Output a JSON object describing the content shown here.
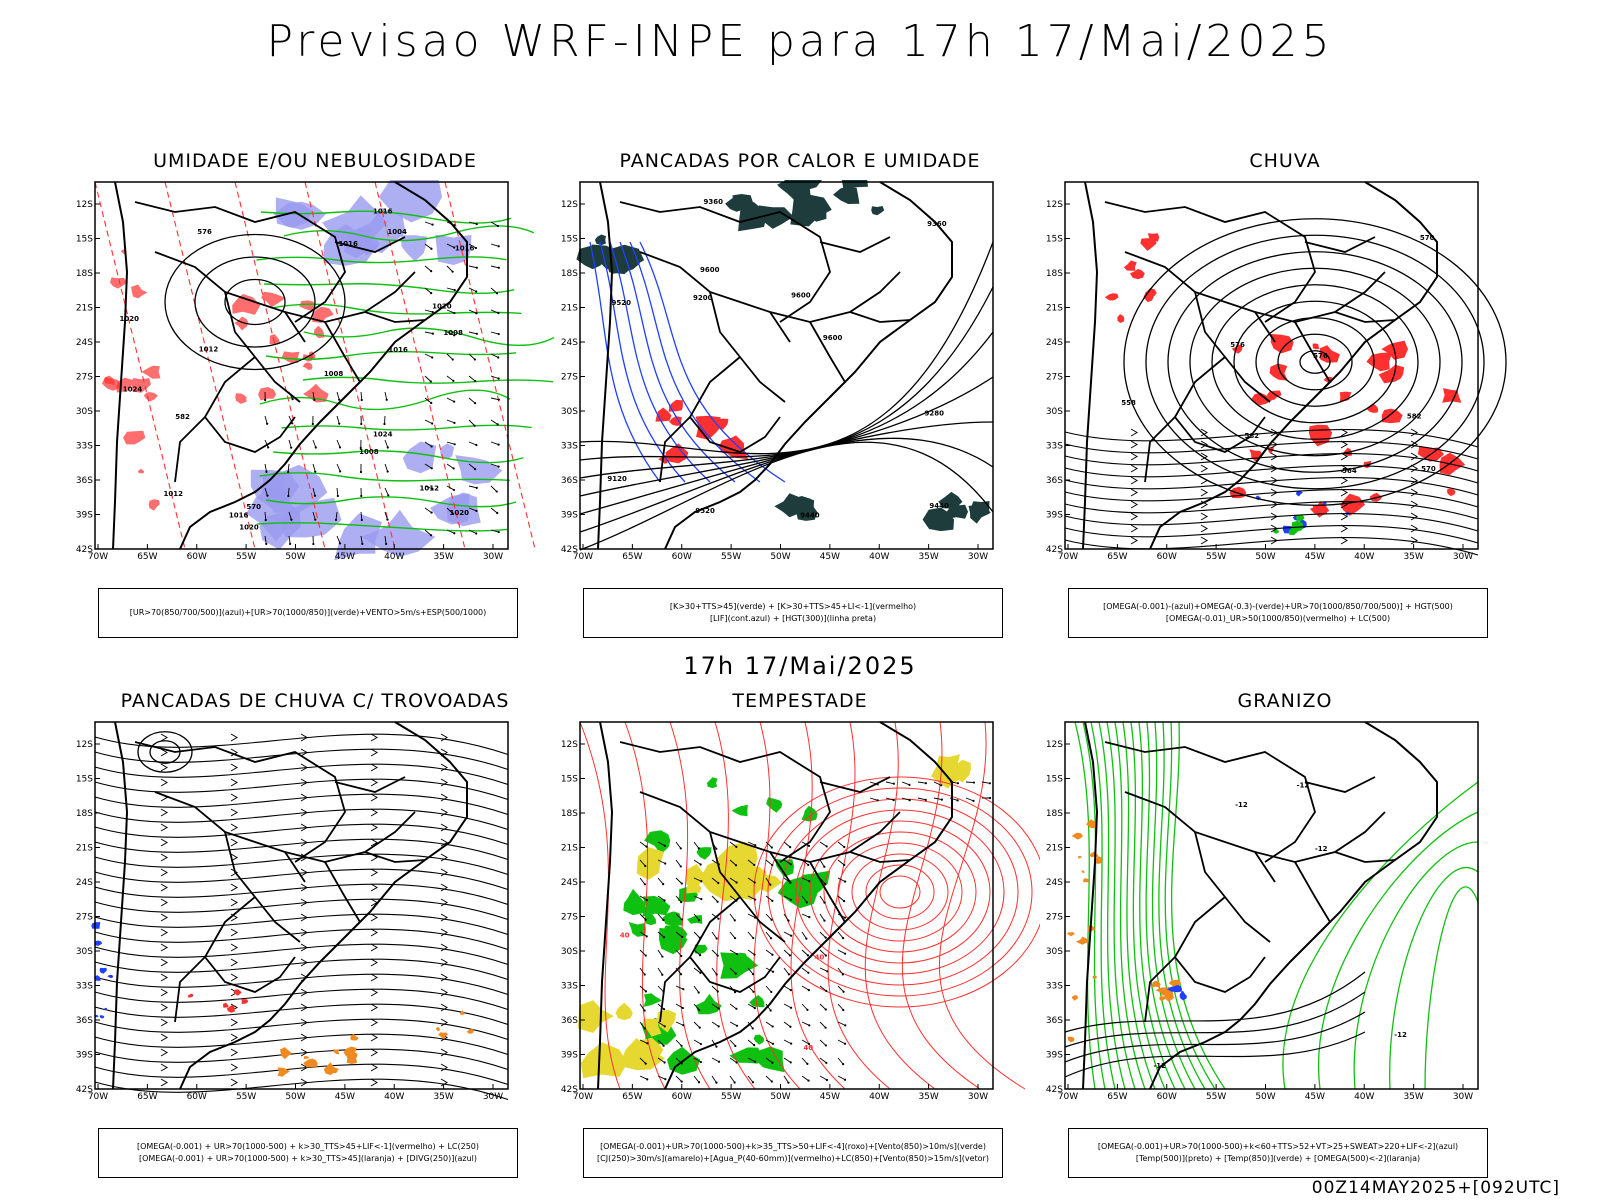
{
  "header": {
    "title": "Previsao WRF-INPE  para 17h 17/Mai/2025"
  },
  "mid_label": "17h 17/Mai/2025",
  "footer": "00Z14MAY2025+[092UTC]",
  "axes": {
    "lat_ticks": [
      "12S",
      "15S",
      "18S",
      "21S",
      "24S",
      "27S",
      "30S",
      "33S",
      "36S",
      "39S",
      "42S"
    ],
    "lon_ticks": [
      "70W",
      "65W",
      "60W",
      "55W",
      "50W",
      "45W",
      "40W",
      "35W",
      "30W"
    ]
  },
  "colors": {
    "red": "#ff3030",
    "green": "#10c010",
    "blue": "#2040ff",
    "lavender": "#9a9af0",
    "dark": "#1f3c3c",
    "yellow": "#e6d830",
    "orange": "#f08a20",
    "black": "#000000"
  },
  "panels": [
    {
      "id": "umidade",
      "title": "UMIDADE E/OU NEBULOSIDADE",
      "legend": [
        "[UR>70(850/700/500)](azul)+[UR>70(1000/850)](verde)+VENTO>5m/s+ESP(500/1000)"
      ],
      "contour_labels": [
        "1016",
        "1012",
        "1012",
        "1016",
        "1020",
        "1016",
        "1020",
        "1008",
        "1012",
        "1024",
        "1008",
        "1004",
        "1016",
        "1020",
        "1008",
        "1024",
        "1020",
        "1016",
        "570",
        "576",
        "582"
      ]
    },
    {
      "id": "pancadas_calor",
      "title": "PANCADAS POR CALOR E UMIDADE",
      "legend": [
        "[K>30+TTS>45](verde) + [K>30+TTS>45+LI<-1](vermelho)",
        "[LIF](cont.azul) + [HGT(300)](linha preta)"
      ],
      "contour_labels": [
        "9600",
        "9520",
        "9440",
        "9360",
        "9280",
        "9200",
        "9120",
        "9600",
        "9600",
        "9520",
        "9440",
        "9360"
      ]
    },
    {
      "id": "chuva",
      "title": "CHUVA",
      "legend": [
        "[OMEGA(-0.001)-(azul)+OMEGA(-0.3)-(verde)+UR>70(1000/850/700/500)] + HGT(500)",
        "[OMEGA(-0.01)_UR>50(1000/850)(vermelho) + LC(500)"
      ],
      "contour_labels": [
        "582",
        "576",
        "570",
        "564",
        "558",
        "582",
        "576",
        "570"
      ]
    },
    {
      "id": "pancadas_trovoadas",
      "title": "PANCADAS DE CHUVA C/ TROVOADAS",
      "legend": [
        "[OMEGA(-0.001) + UR>70(1000-500) + k>30_TTS>45+LIF<-1](vermelho) + LC(250)",
        "[OMEGA(-0.001) + UR>70(1000-500) + k>30_TTS>45](laranja) + [DIVG(250)](azul)"
      ]
    },
    {
      "id": "tempestade",
      "title": "TEMPESTADE",
      "legend": [
        "[OMEGA(-0.001)+UR>70(1000-500)+k>35_TTS>50+LIF<-4](roxo)+[Vento(850)>10m/s](verde)",
        "[CJ(250)>30m/s](amarelo)+[Agua_P(40-60mm)](vermelho)+LC(850)+[Vento(850)>15m/s](vetor)"
      ],
      "contour_labels": [
        "40",
        "40",
        "40"
      ]
    },
    {
      "id": "granizo",
      "title": "GRANIZO",
      "legend": [
        "[OMEGA(-0.001)+UR>70(1000-500)+k<60+TTS>52+VT>25+SWEAT>220+LIF<-2](azul)",
        "[Temp(500)](preto) + [Temp(850)](verde) + [OMEGA(500)<-2](laranja)"
      ],
      "contour_labels": [
        "-12",
        "-12",
        "-12",
        "-12",
        "-12"
      ]
    }
  ]
}
